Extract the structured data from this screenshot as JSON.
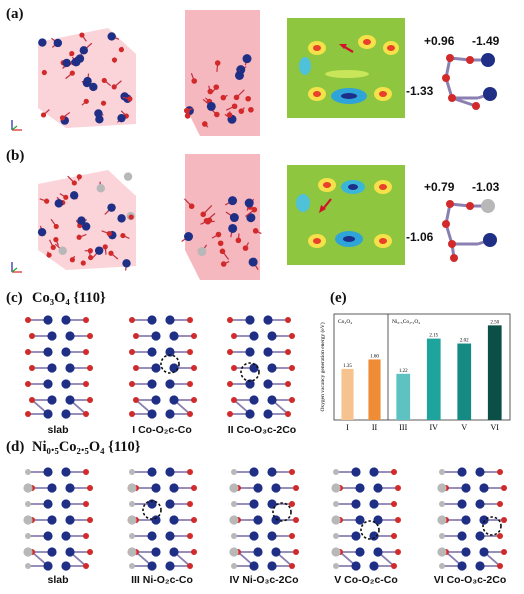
{
  "panel_labels": {
    "a": "(a)",
    "b": "(b)",
    "c": "(c)",
    "d": "(d)",
    "e": "(e)"
  },
  "section_titles": {
    "c": "Co₃O₄ {110}",
    "d": "Ni₀.₅Co₂.₅O₄ {110}"
  },
  "charges_a": {
    "left_top": "+0.96",
    "right_top": "-1.49",
    "bottom": "-1.33"
  },
  "charges_b": {
    "left_top": "+0.79",
    "right_top": "-1.03",
    "bottom": "-1.06"
  },
  "captions_c": [
    "slab",
    "I Co-O₂c-Co",
    "II Co-O₃c-2Co"
  ],
  "captions_d": [
    "slab",
    "III Ni-O₂c-Co",
    "IV Ni-O₃c-2Co",
    "V Co-O₂c-Co",
    "VI Co-O₃c-2Co"
  ],
  "colors": {
    "co": "#1f2f86",
    "o": "#d22a2a",
    "ni": "#b8b8b8",
    "plane": "#f2a0a8",
    "map_bg": "#8ec63f"
  },
  "chart_data": {
    "type": "bar",
    "ylabel": "Oxygen vacancy generation energy (eV)",
    "groups": [
      {
        "name": "Co₃O₄",
        "categories": [
          "I",
          "II"
        ],
        "values": [
          1.35,
          1.6
        ],
        "labels": [
          "1.35",
          "1.60"
        ],
        "colors": [
          "#f6c28f",
          "#ef8d36"
        ]
      },
      {
        "name": "Ni₀.₅Co₂.₅O₄",
        "categories": [
          "III",
          "IV",
          "V",
          "VI"
        ],
        "values": [
          1.22,
          2.15,
          2.02,
          2.5
        ],
        "labels": [
          "1.22",
          "2.15",
          "2.02",
          "2.50"
        ],
        "colors": [
          "#5dc2c1",
          "#1ea39d",
          "#148a82",
          "#0b4f47"
        ]
      }
    ],
    "ylim": [
      0,
      2.8
    ]
  }
}
